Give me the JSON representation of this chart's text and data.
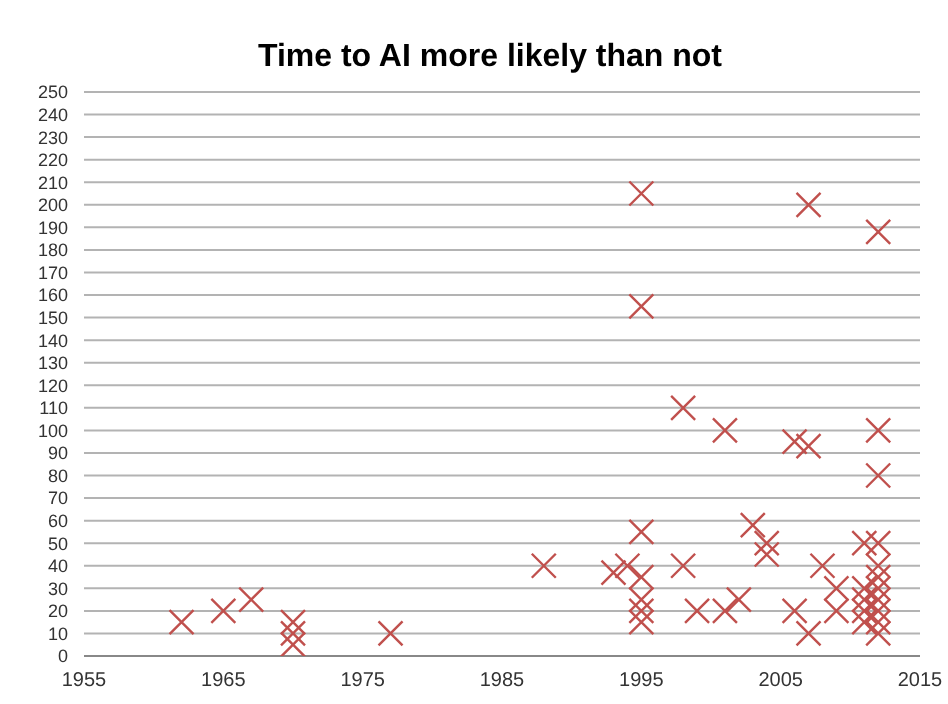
{
  "chart_data": {
    "type": "scatter",
    "title": "Time to AI more likely than not",
    "x": [
      1962,
      1965,
      1967,
      1970,
      1970,
      1970,
      1977,
      1988,
      1993,
      1994,
      1995,
      1995,
      1995,
      1995,
      1995,
      1995,
      1995,
      1998,
      1998,
      1999,
      2001,
      2001,
      2002,
      2003,
      2004,
      2004,
      2006,
      2006,
      2007,
      2007,
      2007,
      2008,
      2009,
      2009,
      2011,
      2011,
      2011,
      2011,
      2011,
      2012,
      2012,
      2012,
      2012,
      2012,
      2012,
      2012,
      2012,
      2012,
      2012,
      2012
    ],
    "values": [
      15,
      20,
      25,
      15,
      10,
      5,
      10,
      40,
      37,
      40,
      55,
      35,
      25,
      20,
      15,
      205,
      155,
      110,
      40,
      20,
      100,
      20,
      25,
      58,
      50,
      45,
      95,
      20,
      93,
      200,
      10,
      40,
      30,
      20,
      50,
      30,
      25,
      20,
      15,
      188,
      100,
      80,
      50,
      40,
      35,
      30,
      25,
      20,
      15,
      10
    ],
    "color": "#c0504d",
    "marker": "cross",
    "grid": "y",
    "xlim": [
      1955,
      2015
    ],
    "xticks": [
      1955,
      1965,
      1975,
      1985,
      1995,
      2005,
      2015
    ],
    "ylim": [
      0,
      250
    ],
    "yticks": [
      0,
      10,
      20,
      30,
      40,
      50,
      60,
      70,
      80,
      90,
      100,
      110,
      120,
      130,
      140,
      150,
      160,
      170,
      180,
      190,
      200,
      210,
      220,
      230,
      240,
      250
    ]
  }
}
